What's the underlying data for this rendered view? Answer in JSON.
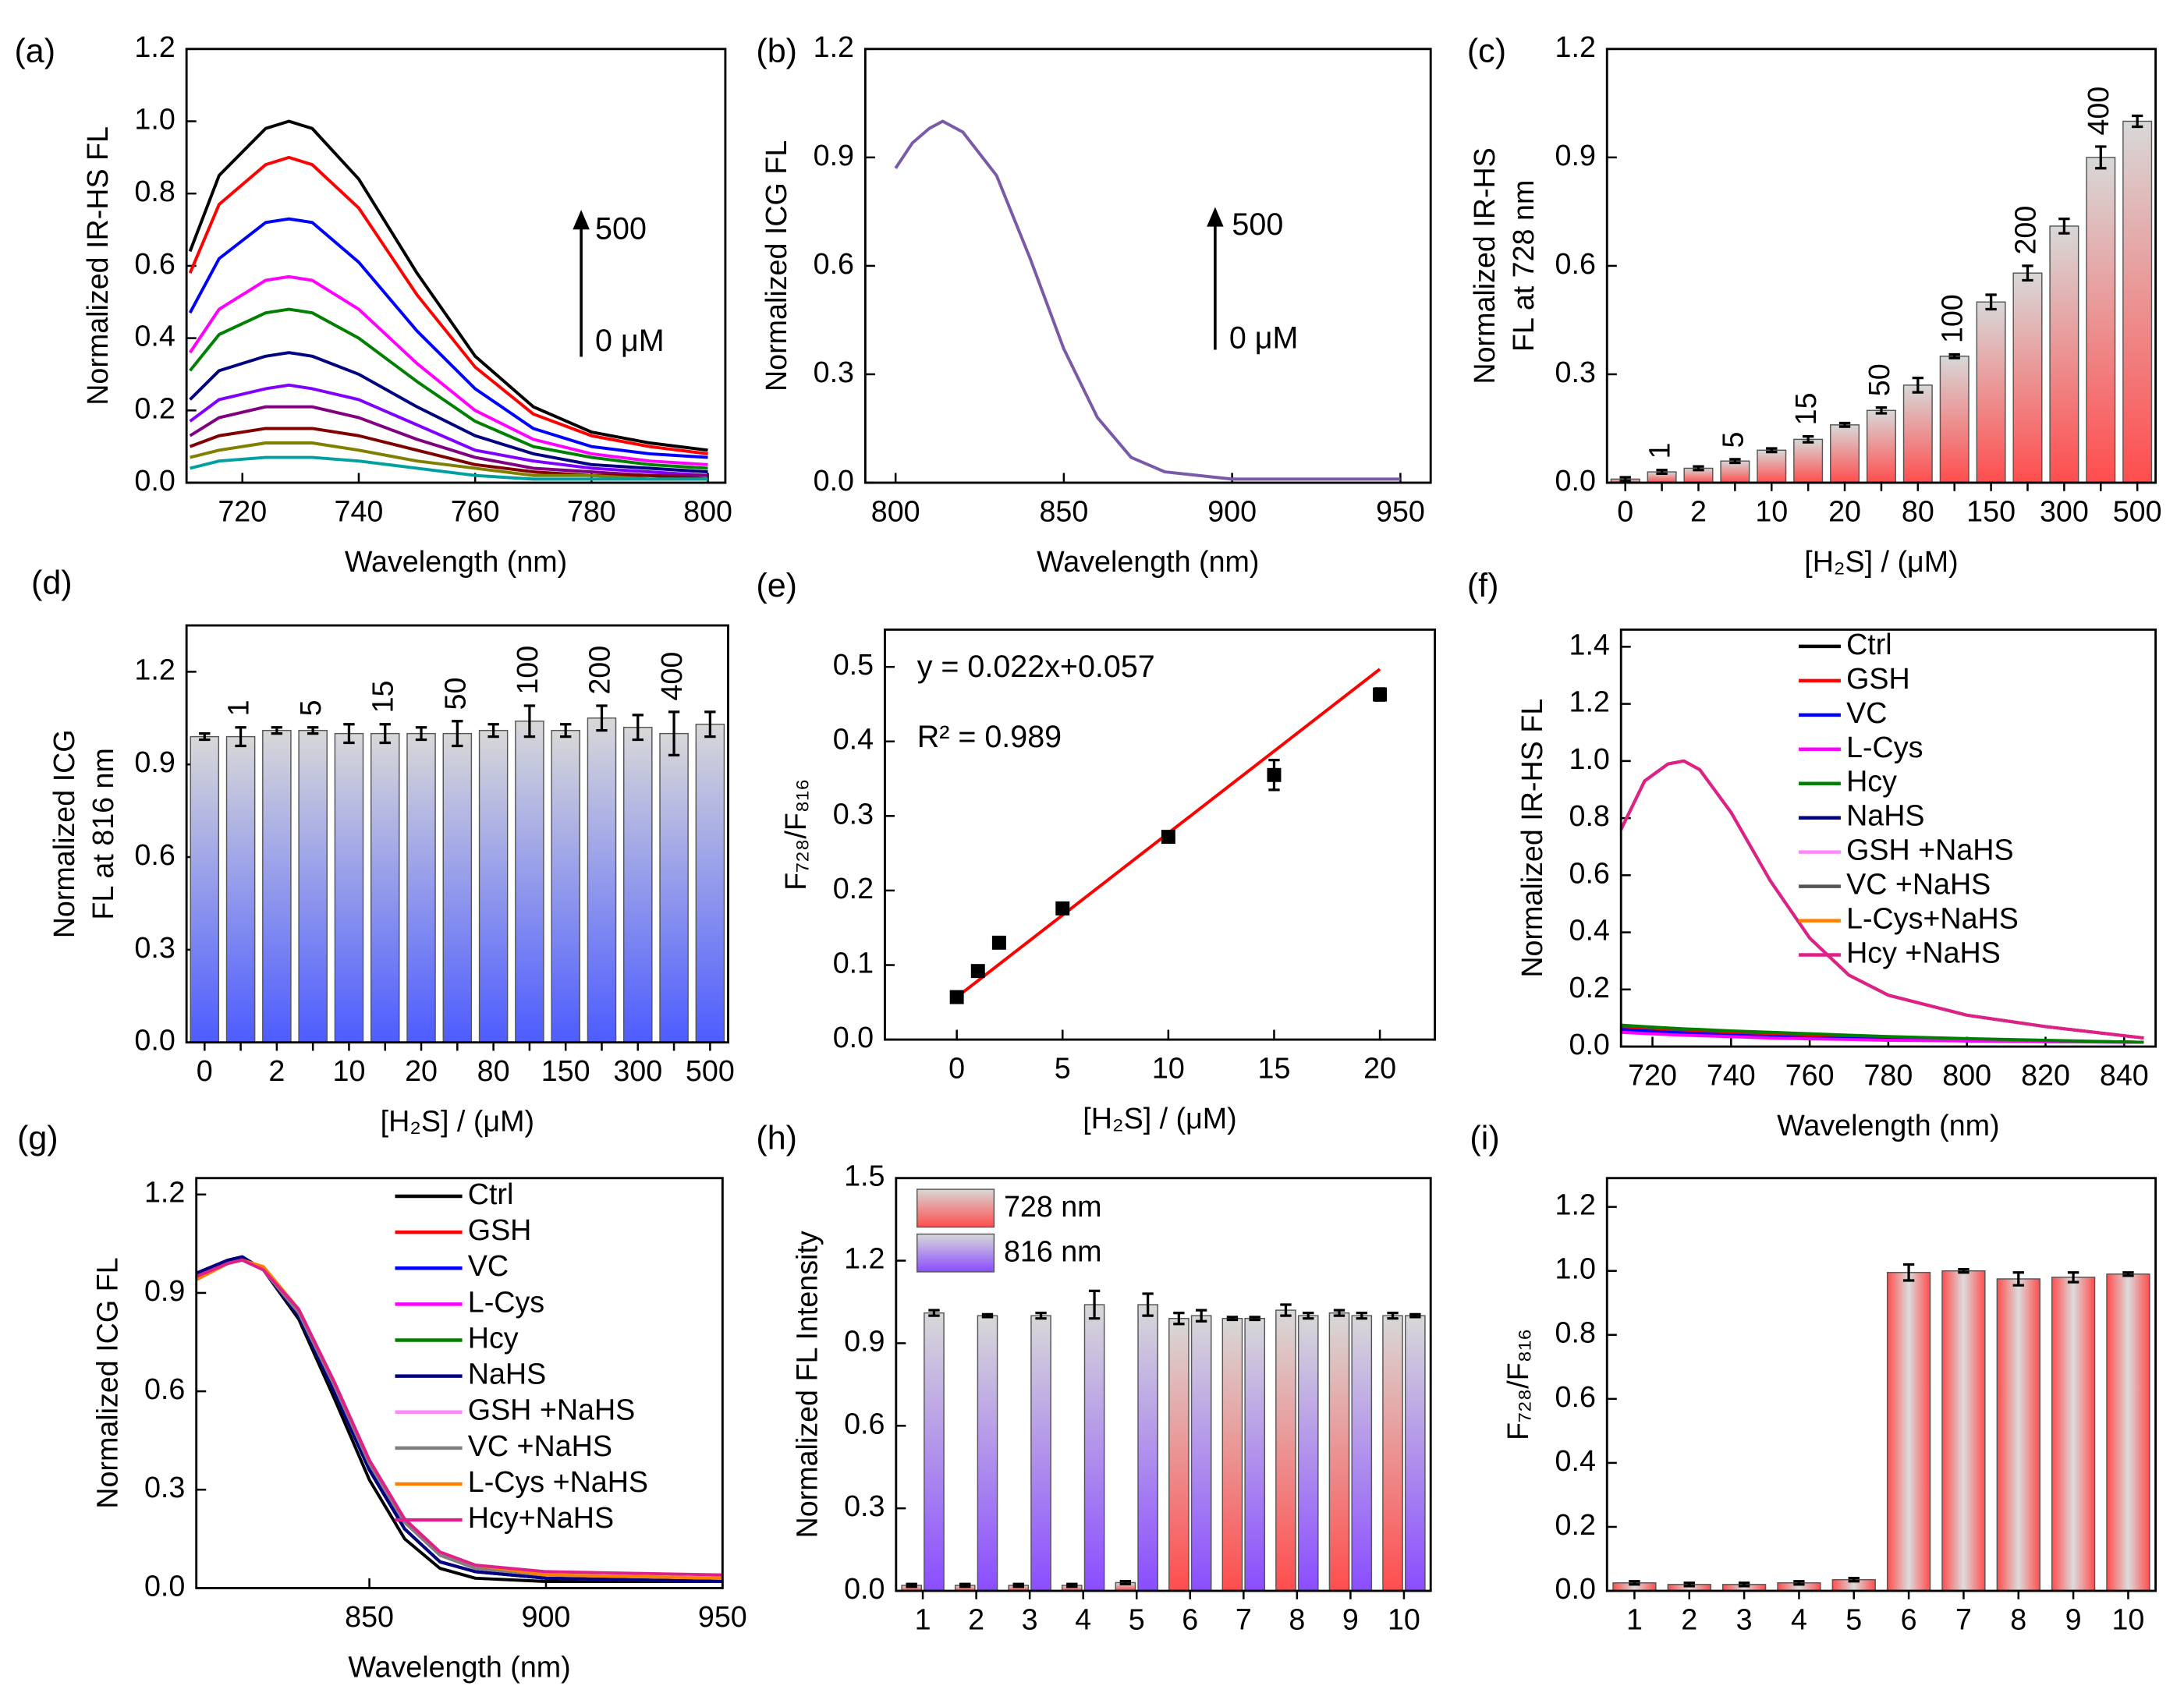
{
  "chart_data": [
    {
      "type": "line",
      "panel_label": "(a)",
      "xlabel": "Wavelength (nm)",
      "ylabel": "Normalized IR-HS FL",
      "x": [
        711,
        716,
        724,
        728,
        732,
        740,
        750,
        760,
        770,
        780,
        790,
        800
      ],
      "series": [
        {
          "color": "#000000",
          "values": [
            0.64,
            0.85,
            0.98,
            1.0,
            0.98,
            0.84,
            0.58,
            0.35,
            0.21,
            0.14,
            0.11,
            0.09
          ]
        },
        {
          "color": "#ff0000",
          "values": [
            0.58,
            0.77,
            0.88,
            0.9,
            0.88,
            0.76,
            0.52,
            0.32,
            0.19,
            0.13,
            0.1,
            0.08
          ]
        },
        {
          "color": "#0000ff",
          "values": [
            0.47,
            0.62,
            0.72,
            0.73,
            0.72,
            0.61,
            0.42,
            0.26,
            0.15,
            0.1,
            0.08,
            0.07
          ]
        },
        {
          "color": "#ff00ff",
          "values": [
            0.36,
            0.48,
            0.56,
            0.57,
            0.56,
            0.48,
            0.33,
            0.2,
            0.12,
            0.08,
            0.06,
            0.05
          ]
        },
        {
          "color": "#008000",
          "values": [
            0.31,
            0.41,
            0.47,
            0.48,
            0.47,
            0.4,
            0.28,
            0.17,
            0.1,
            0.07,
            0.05,
            0.04
          ]
        },
        {
          "color": "#000080",
          "values": [
            0.23,
            0.31,
            0.35,
            0.36,
            0.35,
            0.3,
            0.21,
            0.13,
            0.08,
            0.05,
            0.04,
            0.03
          ]
        },
        {
          "color": "#8000ff",
          "values": [
            0.17,
            0.23,
            0.26,
            0.27,
            0.26,
            0.23,
            0.16,
            0.09,
            0.06,
            0.04,
            0.03,
            0.02
          ]
        },
        {
          "color": "#800080",
          "values": [
            0.13,
            0.18,
            0.21,
            0.21,
            0.21,
            0.18,
            0.12,
            0.07,
            0.04,
            0.03,
            0.02,
            0.02
          ]
        },
        {
          "color": "#800000",
          "values": [
            0.1,
            0.13,
            0.15,
            0.15,
            0.15,
            0.13,
            0.09,
            0.05,
            0.03,
            0.02,
            0.02,
            0.01
          ]
        },
        {
          "color": "#808000",
          "values": [
            0.07,
            0.09,
            0.11,
            0.11,
            0.11,
            0.09,
            0.06,
            0.04,
            0.02,
            0.02,
            0.01,
            0.01
          ]
        },
        {
          "color": "#00a0a0",
          "values": [
            0.04,
            0.06,
            0.07,
            0.07,
            0.07,
            0.06,
            0.04,
            0.02,
            0.01,
            0.01,
            0.01,
            0.01
          ]
        }
      ],
      "xlim": [
        710.4,
        803
      ],
      "xticks": [
        720,
        740,
        760,
        780,
        800
      ],
      "ylim": [
        0,
        1.2
      ],
      "yticks": [
        {
          "value": 0,
          "label": "0.0"
        },
        0.2,
        0.4,
        0.6,
        0.8,
        {
          "value": 1,
          "label": "1.0"
        },
        1.2
      ],
      "annotations": [
        "500",
        "0 μM"
      ]
    },
    {
      "type": "line",
      "panel_label": "(b)",
      "xlabel": "Wavelength (nm)",
      "ylabel": "Normalized ICG FL",
      "x": [
        800,
        805,
        810,
        814,
        820,
        830,
        840,
        850,
        860,
        870,
        880,
        900,
        950
      ],
      "series": [
        {
          "color": "#7a5aa8",
          "values": [
            0.87,
            0.94,
            0.98,
            1.0,
            0.97,
            0.85,
            0.62,
            0.37,
            0.18,
            0.07,
            0.03,
            0.01,
            0.01
          ]
        }
      ],
      "xlim": [
        791,
        959
      ],
      "xticks": [
        800,
        850,
        900,
        950
      ],
      "ylim": [
        0,
        1.2
      ],
      "yticks": [
        {
          "value": 0,
          "label": "0.0"
        },
        0.3,
        0.6,
        0.9,
        1.2
      ],
      "annotations": [
        "500",
        "0 μM"
      ]
    },
    {
      "type": "bar",
      "panel_label": "(c)",
      "xlabel": "[H₂S] / (μM)",
      "ylabel": [
        "Normalized IR-HS",
        "FL at 728 nm"
      ],
      "categories": [
        "0",
        "1",
        "2",
        "5",
        "10",
        "15",
        "20",
        "50",
        "80",
        "100",
        "150",
        "200",
        "300",
        "400",
        "500"
      ],
      "values": [
        0.01,
        0.03,
        0.04,
        0.06,
        0.09,
        0.12,
        0.16,
        0.2,
        0.27,
        0.35,
        0.5,
        0.58,
        0.71,
        0.9,
        1.0
      ],
      "errors": [
        0.005,
        0.005,
        0.005,
        0.005,
        0.005,
        0.008,
        0.005,
        0.008,
        0.02,
        0.005,
        0.02,
        0.02,
        0.02,
        0.03,
        0.015
      ],
      "color": "#ff4d4d",
      "gradient": "vertical",
      "alternate_labels": true,
      "ylim": [
        0,
        1.2
      ],
      "yticks": [
        {
          "value": 0,
          "label": "0.0"
        },
        0.3,
        0.6,
        0.9,
        1.2
      ]
    },
    {
      "type": "bar",
      "panel_label": "(d)",
      "xlabel": "[H₂S] / (μM)",
      "ylabel": [
        "Normalized ICG",
        "FL at 816 nm"
      ],
      "categories": [
        "0",
        "1",
        "2",
        "5",
        "10",
        "15",
        "20",
        "50",
        "80",
        "100",
        "150",
        "200",
        "300",
        "400",
        "500"
      ],
      "values": [
        0.99,
        0.99,
        1.01,
        1.01,
        1.0,
        1.0,
        1.0,
        1.0,
        1.01,
        1.04,
        1.01,
        1.05,
        1.02,
        1.0,
        1.03
      ],
      "errors": [
        0.01,
        0.03,
        0.01,
        0.01,
        0.03,
        0.03,
        0.02,
        0.04,
        0.02,
        0.05,
        0.02,
        0.04,
        0.04,
        0.07,
        0.04
      ],
      "color": "#4d5cff",
      "gradient": "vertical",
      "alternate_labels": true,
      "ylim": [
        0,
        1.35
      ],
      "yticks": [
        {
          "value": 0,
          "label": "0.0"
        },
        0.3,
        0.6,
        0.9,
        1.2
      ]
    },
    {
      "type": "scatter",
      "panel_label": "(e)",
      "xlabel": "[H₂S] / (μM)",
      "ylabel": "F₇₂₈/F₈₁₆",
      "x": [
        0,
        1,
        2,
        5,
        10,
        15,
        20
      ],
      "values": [
        0.057,
        0.092,
        0.13,
        0.176,
        0.272,
        0.355,
        0.463
      ],
      "errors": [
        0.005,
        0.005,
        0.005,
        0.005,
        0.005,
        0.02,
        0.008
      ],
      "color": "#000000",
      "fit": {
        "x": [
          0,
          20
        ],
        "values": [
          0.057,
          0.497
        ],
        "color": "#ff0000"
      },
      "xlim": [
        -3.4,
        22.6
      ],
      "xticks": [
        0,
        5,
        10,
        15,
        20
      ],
      "ylim": [
        0,
        0.55
      ],
      "yticks": [
        {
          "value": 0,
          "label": "0.0"
        },
        0.1,
        0.2,
        0.3,
        0.4,
        0.5
      ],
      "annotations": [
        "y = 0.022x+0.057",
        "R² = 0.989"
      ]
    },
    {
      "type": "line",
      "panel_label": "(f)",
      "xlabel": "Wavelength (nm)",
      "ylabel": "Normalized IR-HS FL",
      "x": [
        712,
        718,
        724,
        728,
        732,
        740,
        750,
        760,
        770,
        780,
        800,
        820,
        845
      ],
      "series": [
        {
          "name": "Ctrl",
          "color": "#000000",
          "values": [
            0.07,
            0.065,
            0.06,
            0.058,
            0.055,
            0.05,
            0.045,
            0.04,
            0.035,
            0.03,
            0.025,
            0.02,
            0.015
          ]
        },
        {
          "name": "GSH",
          "color": "#ff0000",
          "values": [
            0.07,
            0.065,
            0.06,
            0.058,
            0.055,
            0.05,
            0.045,
            0.04,
            0.035,
            0.03,
            0.025,
            0.02,
            0.015
          ]
        },
        {
          "name": "VC",
          "color": "#0000ff",
          "values": [
            0.06,
            0.055,
            0.05,
            0.048,
            0.045,
            0.04,
            0.035,
            0.03,
            0.028,
            0.025,
            0.02,
            0.018,
            0.015
          ]
        },
        {
          "name": "L-Cys",
          "color": "#ff00ff",
          "values": [
            0.05,
            0.046,
            0.042,
            0.04,
            0.038,
            0.035,
            0.03,
            0.027,
            0.025,
            0.022,
            0.02,
            0.017,
            0.015
          ]
        },
        {
          "name": "Hcy",
          "color": "#008000",
          "values": [
            0.075,
            0.07,
            0.065,
            0.062,
            0.06,
            0.055,
            0.05,
            0.045,
            0.04,
            0.035,
            0.028,
            0.022,
            0.015
          ]
        },
        {
          "name": "NaHS",
          "color": "#000080",
          "values": [
            0.76,
            0.93,
            0.99,
            1.0,
            0.97,
            0.82,
            0.58,
            0.38,
            0.25,
            0.18,
            0.11,
            0.07,
            0.03
          ]
        },
        {
          "name": "GSH +NaHS",
          "color": "#ff88ff",
          "values": [
            0.76,
            0.93,
            0.99,
            1.0,
            0.97,
            0.82,
            0.58,
            0.38,
            0.25,
            0.18,
            0.11,
            0.07,
            0.03
          ]
        },
        {
          "name": "VC +NaHS",
          "color": "#555555",
          "values": [
            0.76,
            0.93,
            0.99,
            1.0,
            0.97,
            0.82,
            0.58,
            0.38,
            0.25,
            0.18,
            0.11,
            0.07,
            0.03
          ]
        },
        {
          "name": "L-Cys+NaHS",
          "color": "#ff8000",
          "values": [
            0.76,
            0.93,
            0.99,
            1.0,
            0.97,
            0.82,
            0.58,
            0.38,
            0.25,
            0.18,
            0.11,
            0.07,
            0.03
          ]
        },
        {
          "name": "Hcy +NaHS",
          "color": "#e0208a",
          "values": [
            0.76,
            0.93,
            0.99,
            1.0,
            0.97,
            0.82,
            0.58,
            0.38,
            0.25,
            0.18,
            0.11,
            0.07,
            0.03
          ]
        }
      ],
      "xlim": [
        712,
        848
      ],
      "xticks": [
        720,
        740,
        760,
        780,
        800,
        820,
        840
      ],
      "ylim": [
        0,
        1.46
      ],
      "yticks": [
        {
          "value": 0,
          "label": "0.0"
        },
        0.2,
        0.4,
        0.6,
        0.8,
        {
          "value": 1,
          "label": "1.0"
        },
        1.2,
        1.4
      ]
    },
    {
      "type": "line",
      "panel_label": "(g)",
      "xlabel": "Wavelength (nm)",
      "ylabel": "Normalized ICG FL",
      "x": [
        801,
        810,
        814,
        820,
        830,
        840,
        850,
        860,
        870,
        880,
        900,
        950
      ],
      "series": [
        {
          "name": "Ctrl",
          "color": "#000000",
          "values": [
            0.96,
            1.0,
            1.01,
            0.97,
            0.82,
            0.58,
            0.33,
            0.15,
            0.06,
            0.03,
            0.02,
            0.02
          ]
        },
        {
          "name": "GSH",
          "color": "#ff0000",
          "values": [
            0.96,
            1.0,
            1.01,
            0.97,
            0.83,
            0.6,
            0.36,
            0.18,
            0.08,
            0.05,
            0.03,
            0.02
          ]
        },
        {
          "name": "VC",
          "color": "#0000ff",
          "values": [
            0.96,
            1.0,
            1.01,
            0.97,
            0.83,
            0.61,
            0.37,
            0.18,
            0.08,
            0.05,
            0.03,
            0.02
          ]
        },
        {
          "name": "L-Cys",
          "color": "#ff00ff",
          "values": [
            0.96,
            1.0,
            1.01,
            0.97,
            0.83,
            0.6,
            0.36,
            0.18,
            0.08,
            0.05,
            0.03,
            0.02
          ]
        },
        {
          "name": "Hcy",
          "color": "#008000",
          "values": [
            0.96,
            1.0,
            1.01,
            0.97,
            0.83,
            0.6,
            0.36,
            0.18,
            0.08,
            0.05,
            0.03,
            0.02
          ]
        },
        {
          "name": "NaHS",
          "color": "#000080",
          "values": [
            0.96,
            1.0,
            1.01,
            0.97,
            0.83,
            0.6,
            0.36,
            0.18,
            0.08,
            0.05,
            0.03,
            0.02
          ]
        },
        {
          "name": "GSH +NaHS",
          "color": "#ff88ff",
          "values": [
            0.95,
            0.99,
            1.0,
            0.97,
            0.84,
            0.62,
            0.38,
            0.2,
            0.1,
            0.06,
            0.04,
            0.03
          ]
        },
        {
          "name": "VC +NaHS",
          "color": "#808080",
          "values": [
            0.95,
            0.99,
            1.0,
            0.97,
            0.84,
            0.62,
            0.38,
            0.2,
            0.1,
            0.06,
            0.04,
            0.03
          ]
        },
        {
          "name": "L-Cys +NaHS",
          "color": "#ff8000",
          "values": [
            0.94,
            0.99,
            1.0,
            0.98,
            0.85,
            0.63,
            0.39,
            0.21,
            0.11,
            0.07,
            0.04,
            0.03
          ]
        },
        {
          "name": "Hcy+NaHS",
          "color": "#e0208a",
          "values": [
            0.95,
            0.99,
            1.0,
            0.97,
            0.85,
            0.63,
            0.39,
            0.21,
            0.11,
            0.07,
            0.05,
            0.04
          ]
        }
      ],
      "xlim": [
        801,
        950
      ],
      "xticks": [
        850,
        900,
        950
      ],
      "ylim": [
        0,
        1.25
      ],
      "yticks": [
        {
          "value": 0,
          "label": "0.0"
        },
        0.3,
        0.6,
        0.9,
        1.2
      ]
    },
    {
      "type": "bar",
      "panel_label": "(h)",
      "ylabel": "Normalized FL Intensity",
      "categories": [
        "1",
        "2",
        "3",
        "4",
        "5",
        "6",
        "7",
        "8",
        "9",
        "10"
      ],
      "series": [
        {
          "name": "728 nm",
          "color": "#ff4d4d",
          "values": [
            0.02,
            0.02,
            0.02,
            0.02,
            0.03,
            0.99,
            0.99,
            1.02,
            1.01,
            1.0
          ],
          "errors": [
            0.005,
            0.005,
            0.005,
            0.005,
            0.005,
            0.02,
            0.005,
            0.02,
            0.01,
            0.01
          ]
        },
        {
          "name": "816 nm",
          "color": "#8a4dff",
          "values": [
            1.01,
            1.0,
            1.0,
            1.04,
            1.04,
            1.0,
            0.99,
            1.0,
            1.0,
            1.0
          ],
          "errors": [
            0.01,
            0.005,
            0.01,
            0.05,
            0.04,
            0.02,
            0.005,
            0.01,
            0.01,
            0.005
          ]
        }
      ],
      "gradient": "vertical",
      "ylim": [
        0,
        1.5
      ],
      "yticks": [
        {
          "value": 0,
          "label": "0.0"
        },
        0.3,
        0.6,
        0.9,
        1.2,
        1.5
      ]
    },
    {
      "type": "bar",
      "panel_label": "(i)",
      "ylabel": "F₇₂₈/F₈₁₆",
      "categories": [
        "1",
        "2",
        "3",
        "4",
        "5",
        "6",
        "7",
        "8",
        "9",
        "10"
      ],
      "values": [
        0.025,
        0.02,
        0.02,
        0.025,
        0.035,
        0.995,
        1.0,
        0.975,
        0.98,
        0.99
      ],
      "errors": [
        0.005,
        0.005,
        0.005,
        0.005,
        0.005,
        0.025,
        0.005,
        0.02,
        0.015,
        0.005
      ],
      "color": "#ff4d4d",
      "gradient": "horizontal",
      "ylim": [
        0,
        1.29
      ],
      "yticks": [
        {
          "value": 0,
          "label": "0.0"
        },
        0.2,
        0.4,
        0.6,
        0.8,
        {
          "value": 1,
          "label": "1.0"
        },
        1.2
      ]
    }
  ]
}
